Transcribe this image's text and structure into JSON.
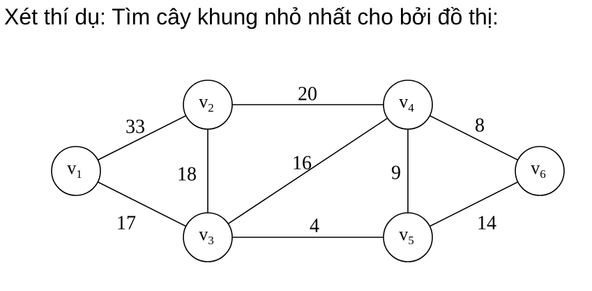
{
  "heading": "Xét thí dụ: Tìm cây khung nhỏ nhất cho bởi đồ thị:",
  "graph": {
    "nodes": [
      {
        "id": "v1",
        "letter": "v",
        "sub": "1"
      },
      {
        "id": "v2",
        "letter": "v",
        "sub": "2"
      },
      {
        "id": "v3",
        "letter": "v",
        "sub": "3"
      },
      {
        "id": "v4",
        "letter": "v",
        "sub": "4"
      },
      {
        "id": "v5",
        "letter": "v",
        "sub": "5"
      },
      {
        "id": "v6",
        "letter": "v",
        "sub": "6"
      }
    ],
    "edges": [
      {
        "from": "v1",
        "to": "v2",
        "weight": "33"
      },
      {
        "from": "v1",
        "to": "v3",
        "weight": "17"
      },
      {
        "from": "v2",
        "to": "v3",
        "weight": "18"
      },
      {
        "from": "v2",
        "to": "v4",
        "weight": "20"
      },
      {
        "from": "v3",
        "to": "v4",
        "weight": "16"
      },
      {
        "from": "v3",
        "to": "v5",
        "weight": "4"
      },
      {
        "from": "v4",
        "to": "v5",
        "weight": "9"
      },
      {
        "from": "v4",
        "to": "v6",
        "weight": "8"
      },
      {
        "from": "v5",
        "to": "v6",
        "weight": "14"
      }
    ]
  }
}
